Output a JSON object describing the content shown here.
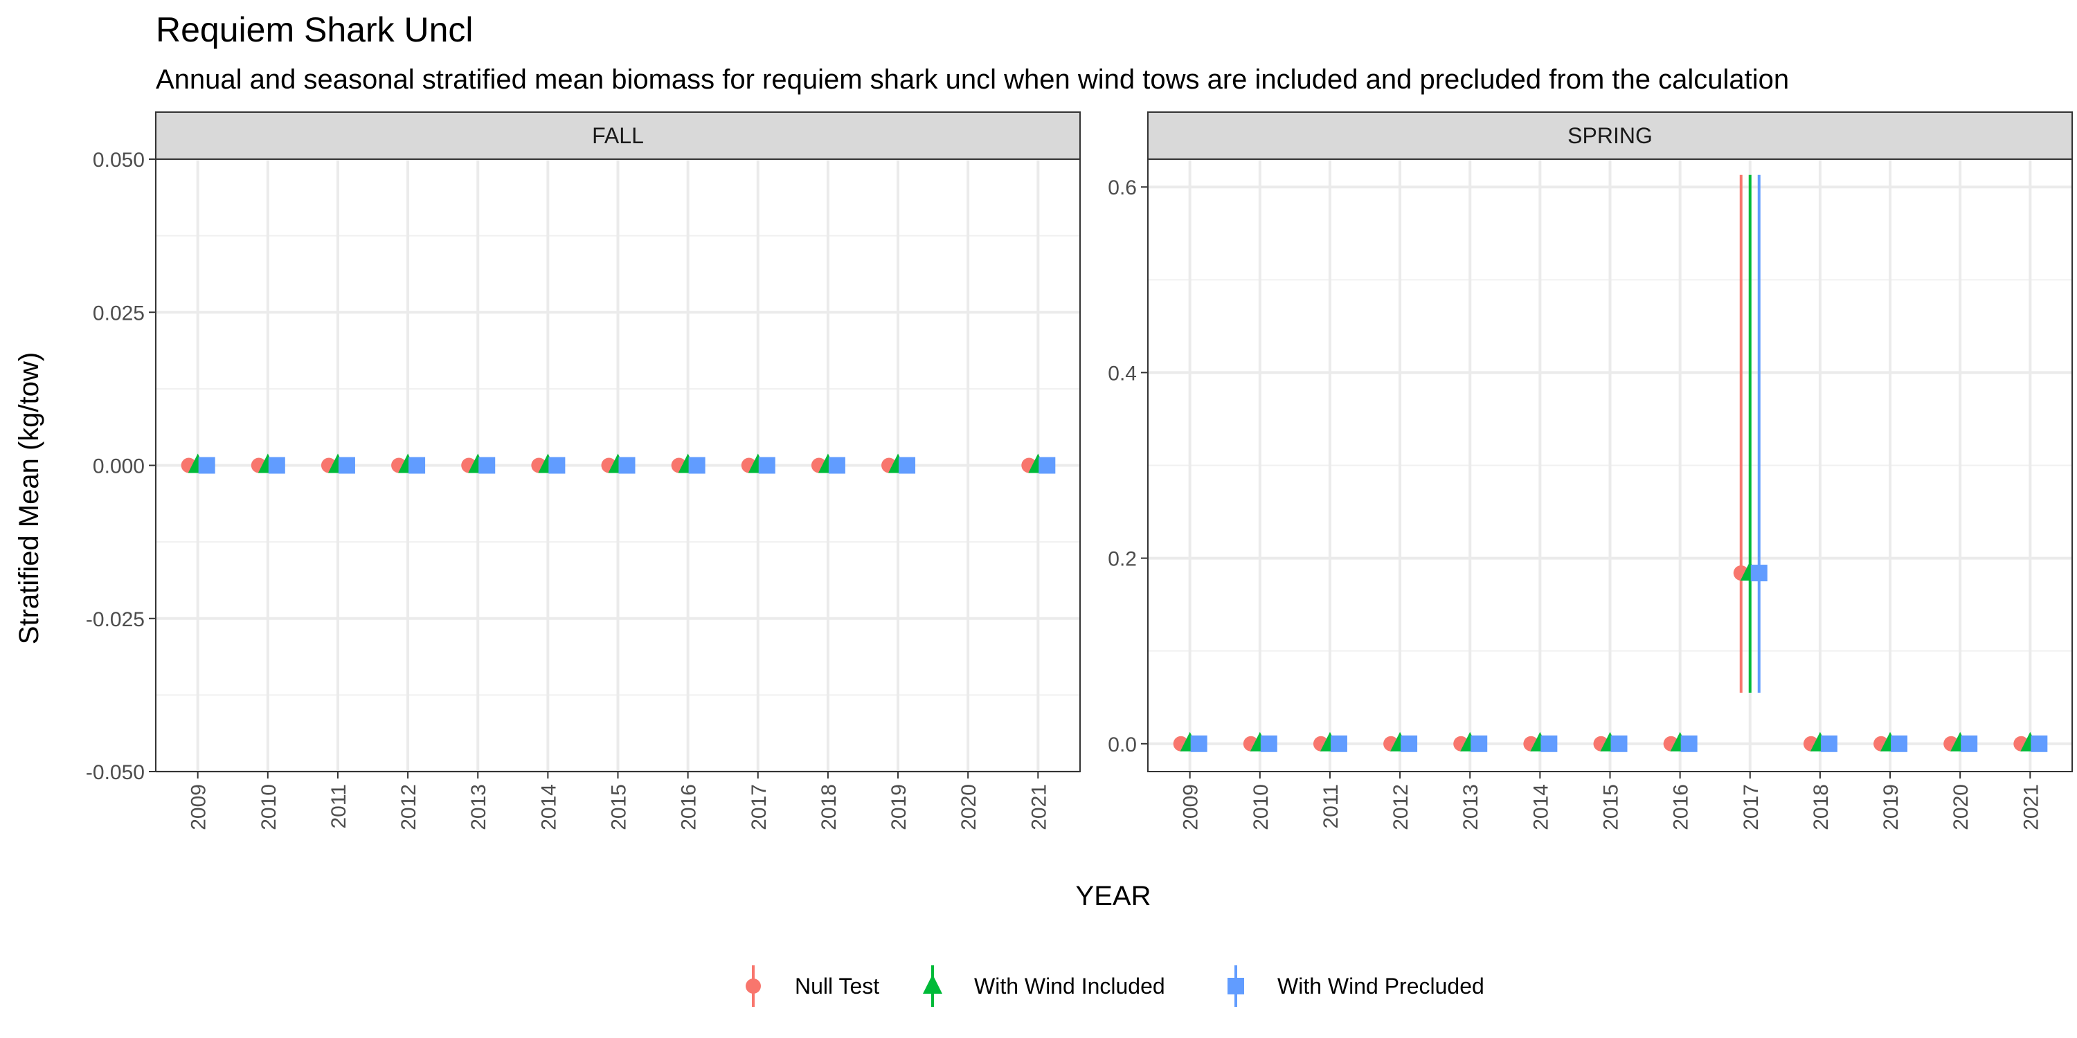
{
  "chart_data": {
    "type": "scatter",
    "title": "Requiem Shark Uncl",
    "subtitle": "Annual and seasonal stratified mean biomass for requiem shark uncl when wind tows are included and precluded from the calculation",
    "xlabel": "YEAR",
    "ylabel": "Stratified Mean (kg/tow)",
    "legend_position": "bottom",
    "grid": true,
    "series_styles": [
      {
        "name": "Null Test",
        "color": "#F8766D",
        "shape": "circle"
      },
      {
        "name": "With Wind Included",
        "color": "#00BA38",
        "shape": "triangle"
      },
      {
        "name": "With Wind Precluded",
        "color": "#619CFF",
        "shape": "square"
      }
    ],
    "panels": [
      {
        "strip": "FALL",
        "x": [
          "2009",
          "2010",
          "2011",
          "2012",
          "2013",
          "2014",
          "2015",
          "2016",
          "2017",
          "2018",
          "2019",
          "2020",
          "2021"
        ],
        "ylim": [
          -0.05,
          0.05
        ],
        "yticks": [
          -0.05,
          -0.025,
          0,
          0.025,
          0.05
        ],
        "ytick_labels": [
          "-0.050",
          "-0.025",
          "0.000",
          "0.025",
          "0.050"
        ],
        "series": [
          {
            "name": "Null Test",
            "values": [
              0,
              0,
              0,
              0,
              0,
              0,
              0,
              0,
              0,
              0,
              0,
              null,
              0
            ],
            "lower": [
              0,
              0,
              0,
              0,
              0,
              0,
              0,
              0,
              0,
              0,
              0,
              null,
              0
            ],
            "upper": [
              0,
              0,
              0,
              0,
              0,
              0,
              0,
              0,
              0,
              0,
              0,
              null,
              0
            ]
          },
          {
            "name": "With Wind Included",
            "values": [
              0,
              0,
              0,
              0,
              0,
              0,
              0,
              0,
              0,
              0,
              0,
              null,
              0
            ],
            "lower": [
              0,
              0,
              0,
              0,
              0,
              0,
              0,
              0,
              0,
              0,
              0,
              null,
              0
            ],
            "upper": [
              0,
              0,
              0,
              0,
              0,
              0,
              0,
              0,
              0,
              0,
              0,
              null,
              0
            ]
          },
          {
            "name": "With Wind Precluded",
            "values": [
              0,
              0,
              0,
              0,
              0,
              0,
              0,
              0,
              0,
              0,
              0,
              null,
              0
            ],
            "lower": [
              0,
              0,
              0,
              0,
              0,
              0,
              0,
              0,
              0,
              0,
              0,
              null,
              0
            ],
            "upper": [
              0,
              0,
              0,
              0,
              0,
              0,
              0,
              0,
              0,
              0,
              0,
              null,
              0
            ]
          }
        ]
      },
      {
        "strip": "SPRING",
        "x": [
          "2009",
          "2010",
          "2011",
          "2012",
          "2013",
          "2014",
          "2015",
          "2016",
          "2017",
          "2018",
          "2019",
          "2020",
          "2021"
        ],
        "ylim": [
          -0.03,
          0.63
        ],
        "yticks": [
          0,
          0.2,
          0.4,
          0.6
        ],
        "ytick_labels": [
          "0.0",
          "0.2",
          "0.4",
          "0.6"
        ],
        "series": [
          {
            "name": "Null Test",
            "values": [
              0,
              0,
              0,
              0,
              0,
              0,
              0,
              0,
              0.184,
              0,
              0,
              0,
              0
            ],
            "lower": [
              0,
              0,
              0,
              0,
              0,
              0,
              0,
              0,
              0.055,
              0,
              0,
              0,
              0
            ],
            "upper": [
              0,
              0,
              0,
              0,
              0,
              0,
              0,
              0,
              0.613,
              0,
              0,
              0,
              0
            ]
          },
          {
            "name": "With Wind Included",
            "values": [
              0,
              0,
              0,
              0,
              0,
              0,
              0,
              0,
              0.184,
              0,
              0,
              0,
              0
            ],
            "lower": [
              0,
              0,
              0,
              0,
              0,
              0,
              0,
              0,
              0.055,
              0,
              0,
              0,
              0
            ],
            "upper": [
              0,
              0,
              0,
              0,
              0,
              0,
              0,
              0,
              0.613,
              0,
              0,
              0,
              0
            ]
          },
          {
            "name": "With Wind Precluded",
            "values": [
              0,
              0,
              0,
              0,
              0,
              0,
              0,
              0,
              0.184,
              0,
              0,
              0,
              0
            ],
            "lower": [
              0,
              0,
              0,
              0,
              0,
              0,
              0,
              0,
              0.055,
              0,
              0,
              0,
              0
            ],
            "upper": [
              0,
              0,
              0,
              0,
              0,
              0,
              0,
              0,
              0.613,
              0,
              0,
              0,
              0
            ]
          }
        ]
      }
    ]
  }
}
